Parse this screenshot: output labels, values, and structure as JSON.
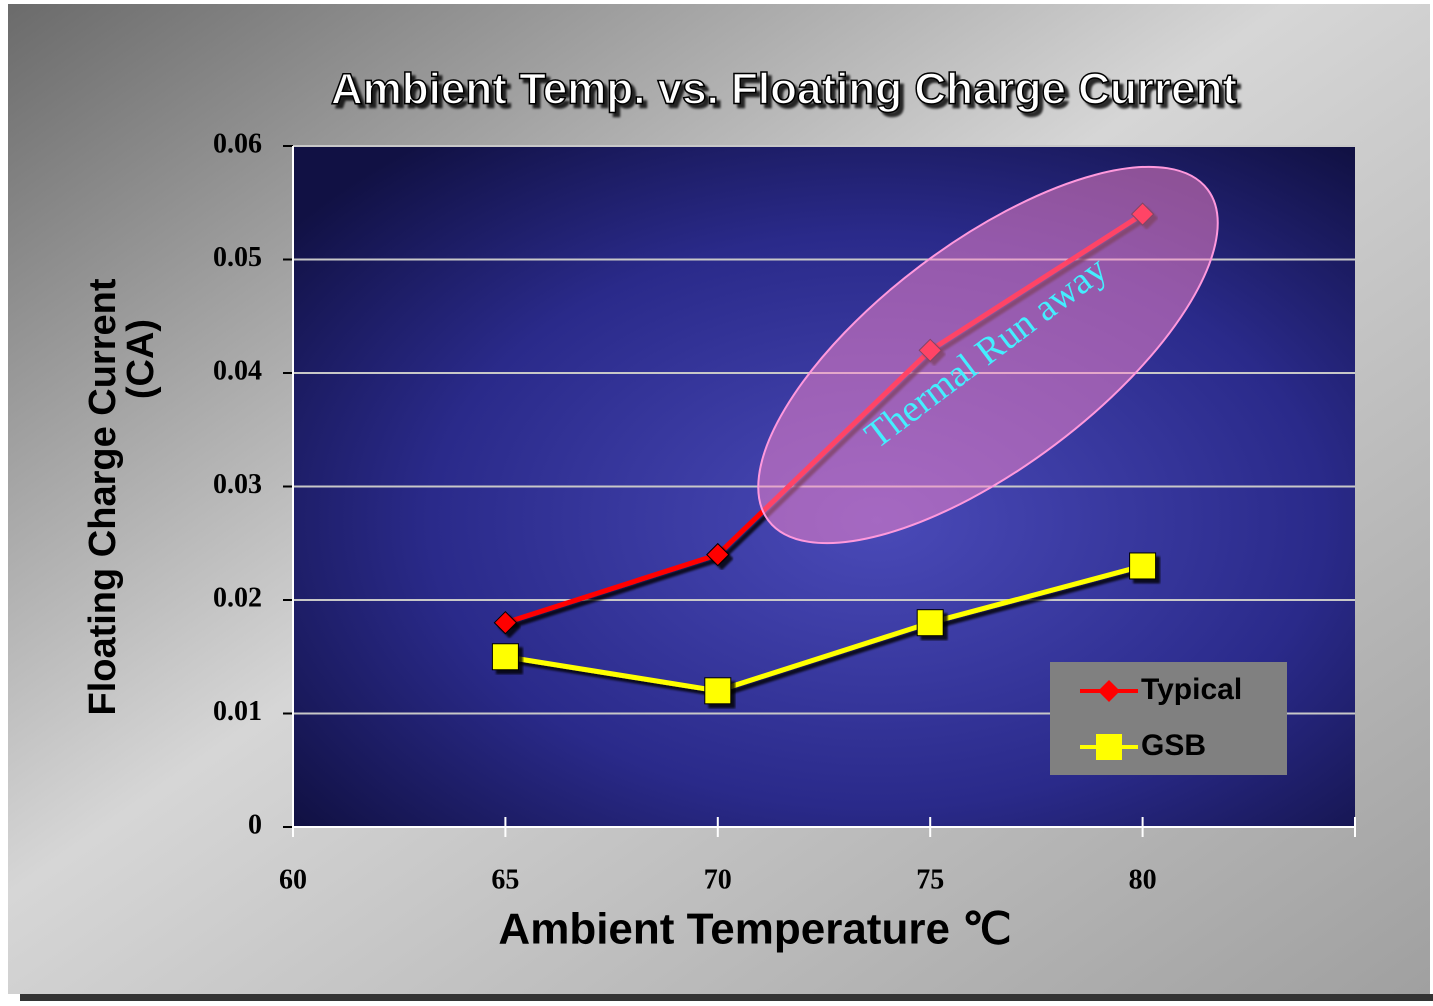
{
  "chart_data": {
    "type": "line",
    "title": "Ambient Temp. vs. Floating Charge Current",
    "x_label": "Ambient Temperature ℃",
    "y_label": [
      "Floating Charge Current",
      "(CA)"
    ],
    "x": [
      65,
      70,
      75,
      80
    ],
    "series": [
      {
        "name": "Typical",
        "color": "#ff0000",
        "marker": "diamond",
        "values": [
          0.018,
          0.024,
          0.042,
          0.054
        ]
      },
      {
        "name": "GSB",
        "color": "#ffff00",
        "marker": "square",
        "values": [
          0.015,
          0.012,
          0.018,
          0.023
        ]
      }
    ],
    "xlim": [
      60,
      85
    ],
    "xticks": [
      60,
      65,
      70,
      75,
      80
    ],
    "ylim": [
      0,
      0.06
    ],
    "yticks": [
      0,
      0.01,
      0.02,
      0.03,
      0.04,
      0.05,
      0.06
    ],
    "grid": true,
    "legend": "lower right",
    "annotation": "Thermal Run away"
  }
}
